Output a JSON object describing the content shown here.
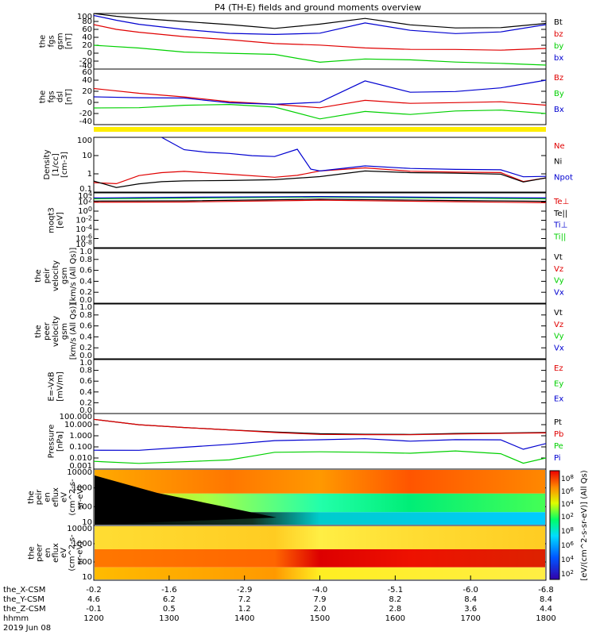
{
  "title": "P4 (TH-E) fields and ground moments overview",
  "colors": {
    "black": "#000000",
    "red": "#e00000",
    "green": "#00d000",
    "blue": "#0000d0",
    "yellow": "#ffee00"
  },
  "footer": {
    "rows": [
      {
        "label": "the_X-CSM",
        "values": [
          "-0.2",
          "-1.6",
          "-2.9",
          "-4.0",
          "-5.1",
          "-6.0",
          "-6.8"
        ]
      },
      {
        "label": "the_Y-CSM",
        "values": [
          "4.6",
          "6.2",
          "7.2",
          "7.9",
          "8.2",
          "8.4",
          "8.4"
        ]
      },
      {
        "label": "the_Z-CSM",
        "values": [
          "-0.1",
          "0.5",
          "1.2",
          "2.0",
          "2.8",
          "3.6",
          "4.4"
        ]
      },
      {
        "label": "hhmm",
        "values": [
          "1200",
          "1300",
          "1400",
          "1500",
          "1600",
          "1700",
          "1800"
        ]
      }
    ],
    "date": "2019 Jun 08"
  },
  "colorbar": {
    "label": "[eV/(cm^2-s-sr-eV)]  (All Qs)",
    "upper_ticks": [
      "10^8",
      "10^6",
      "10^4",
      "10^2"
    ],
    "lower_ticks": [
      "10^8",
      "10^6",
      "10^4",
      "10^2"
    ]
  },
  "chart_data": [
    {
      "type": "line",
      "name": "fgs_gsm",
      "ylabel_lines": [
        "the",
        "fgs",
        "gsm",
        "[nT]"
      ],
      "yticks": [
        "100",
        "80",
        "60",
        "40",
        "20",
        "0",
        "-20",
        "-40"
      ],
      "ylim": [
        -40,
        100
      ],
      "legend": [
        "Bt",
        "bz",
        "by",
        "bx"
      ],
      "series": [
        {
          "name": "Bt",
          "color": "black",
          "x": [
            0,
            0.05,
            0.1,
            0.2,
            0.3,
            0.35,
            0.4,
            0.5,
            0.6,
            0.7,
            0.8,
            0.9,
            1
          ],
          "y": [
            100,
            95,
            90,
            80,
            70,
            65,
            62,
            75,
            90,
            72,
            62,
            62,
            75
          ]
        },
        {
          "name": "bz",
          "color": "red",
          "x": [
            0,
            0.05,
            0.1,
            0.2,
            0.3,
            0.4,
            0.5,
            0.6,
            0.7,
            0.8,
            0.9,
            1
          ],
          "y": [
            72,
            62,
            55,
            42,
            32,
            22,
            20,
            15,
            12,
            10,
            6,
            12
          ]
        },
        {
          "name": "by",
          "color": "green",
          "x": [
            0,
            0.1,
            0.2,
            0.3,
            0.4,
            0.5,
            0.6,
            0.7,
            0.8,
            0.9,
            1
          ],
          "y": [
            20,
            15,
            5,
            0,
            -5,
            -25,
            -15,
            -15,
            -20,
            -25,
            -30
          ]
        },
        {
          "name": "bx",
          "color": "blue",
          "x": [
            0,
            0.05,
            0.1,
            0.2,
            0.3,
            0.4,
            0.5,
            0.6,
            0.7,
            0.8,
            0.9,
            1
          ],
          "y": [
            95,
            85,
            75,
            60,
            48,
            45,
            50,
            78,
            60,
            50,
            52,
            72
          ]
        }
      ]
    },
    {
      "type": "line",
      "name": "fgs_dsl",
      "ylabel_lines": [
        "the",
        "fgs",
        "dsl",
        "[nT]"
      ],
      "yticks": [
        "60",
        "40",
        "20",
        "0",
        "-20",
        "-40"
      ],
      "ylim": [
        -40,
        60
      ],
      "legend": [
        "Bz",
        "By",
        "Bx"
      ],
      "series": [
        {
          "name": "Bz",
          "color": "red",
          "x": [
            0,
            0.1,
            0.2,
            0.3,
            0.4,
            0.5,
            0.6,
            0.7,
            0.8,
            0.9,
            1
          ],
          "y": [
            25,
            18,
            10,
            0,
            -5,
            -10,
            5,
            0,
            0,
            0,
            -5
          ]
        },
        {
          "name": "By",
          "color": "green",
          "x": [
            0,
            0.1,
            0.2,
            0.3,
            0.4,
            0.5,
            0.6,
            0.7,
            0.8,
            0.9,
            1
          ],
          "y": [
            -10,
            -8,
            -5,
            -5,
            -10,
            -30,
            -15,
            -20,
            -15,
            -15,
            -20
          ]
        },
        {
          "name": "Bx",
          "color": "blue",
          "x": [
            0,
            0.1,
            0.2,
            0.3,
            0.4,
            0.5,
            0.6,
            0.7,
            0.8,
            0.9,
            1
          ],
          "y": [
            10,
            10,
            8,
            -2,
            -5,
            0,
            40,
            20,
            20,
            25,
            40
          ]
        }
      ]
    },
    {
      "type": "line",
      "name": "density",
      "ylabel_lines": [
        "Density",
        "[1/cc]",
        "[cm-3]"
      ],
      "yticks": [
        "100",
        "10",
        "1",
        "0.1"
      ],
      "ylim": [
        0.1,
        300
      ],
      "log": true,
      "legend": [
        "Ne",
        "Ni",
        "Npot"
      ],
      "series": [
        {
          "name": "Ne",
          "color": "red",
          "x": [
            0,
            0.05,
            0.1,
            0.15,
            0.2,
            0.3,
            0.4,
            0.45,
            0.5,
            0.6,
            0.7,
            0.8,
            0.9,
            0.95,
            1
          ],
          "y": [
            0.4,
            0.35,
            1,
            1.5,
            2,
            1.5,
            1,
            1.2,
            2,
            3,
            2,
            2,
            2,
            0.5,
            0.8
          ]
        },
        {
          "name": "Ni",
          "color": "black",
          "x": [
            0,
            0.05,
            0.1,
            0.15,
            0.2,
            0.3,
            0.4,
            0.5,
            0.6,
            0.7,
            0.8,
            0.9,
            0.95,
            1
          ],
          "y": [
            0.5,
            0.2,
            0.3,
            0.4,
            0.5,
            0.6,
            0.7,
            1,
            2,
            1.5,
            1.5,
            1.5,
            0.5,
            0.8
          ]
        },
        {
          "name": "Npot",
          "color": "blue",
          "x": [
            0.15,
            0.2,
            0.25,
            0.3,
            0.35,
            0.4,
            0.45,
            0.48,
            0.5,
            0.6,
            0.7,
            0.8,
            0.9,
            0.95,
            1
          ],
          "y": [
            300,
            50,
            30,
            25,
            20,
            20,
            60,
            3,
            2,
            4,
            3,
            3,
            3,
            1,
            1
          ]
        }
      ]
    },
    {
      "type": "line",
      "name": "temperature",
      "ylabel_lines": [
        "moqt3",
        "[eV]"
      ],
      "yticks": [
        "10^4",
        "10^2",
        "10^0",
        "10^-2",
        "10^-4",
        "10^-6",
        "10^-8"
      ],
      "ylim": [
        1e-09,
        100000.0
      ],
      "log": true,
      "legend": [
        "Te⊥",
        "Te||",
        "Ti⊥",
        "Ti||"
      ],
      "series": [
        {
          "name": "Ti||",
          "color": "green",
          "x": [
            0,
            0.2,
            0.5,
            0.8,
            1
          ],
          "y": [
            3000,
            3000,
            5000,
            4000,
            3000
          ]
        },
        {
          "name": "Ti⊥",
          "color": "blue",
          "x": [
            0,
            0.2,
            0.5,
            0.8,
            1
          ],
          "y": [
            5000,
            5000,
            7000,
            6000,
            5000
          ]
        },
        {
          "name": "Te||",
          "color": "black",
          "x": [
            0,
            0.2,
            0.5,
            0.8,
            1
          ],
          "y": [
            800,
            600,
            1500,
            1000,
            700
          ]
        },
        {
          "name": "Te⊥",
          "color": "red",
          "x": [
            0,
            0.2,
            0.5,
            0.8,
            1
          ],
          "y": [
            400,
            300,
            800,
            500,
            300
          ]
        }
      ]
    },
    {
      "type": "line",
      "name": "peir_velocity",
      "ylabel_lines": [
        "the",
        "peir",
        "velocity",
        "gsm",
        "[km/s (All Qs)]"
      ],
      "yticks": [
        "1.0",
        "0.8",
        "0.6",
        "0.4",
        "0.2",
        "0.0"
      ],
      "ylim": [
        0,
        1
      ],
      "legend": [
        "Vt",
        "Vz",
        "Vy",
        "Vx"
      ],
      "series": []
    },
    {
      "type": "line",
      "name": "peer_velocity",
      "ylabel_lines": [
        "the",
        "peer",
        "velocity",
        "gsm",
        "[km/s (All Qs)]"
      ],
      "yticks": [
        "1.0",
        "0.8",
        "0.6",
        "0.4",
        "0.2",
        "0.0"
      ],
      "ylim": [
        0,
        1
      ],
      "legend": [
        "Vt",
        "Vz",
        "Vy",
        "Vx"
      ],
      "series": []
    },
    {
      "type": "line",
      "name": "e_field",
      "ylabel_lines": [
        "E=-VxB",
        "[mV/m]"
      ],
      "yticks": [
        "1.0",
        "0.8",
        "0.6",
        "0.4",
        "0.2",
        "0.0"
      ],
      "ylim": [
        0,
        1
      ],
      "legend": [
        "Ez",
        "Ey",
        "Ex"
      ],
      "series": []
    },
    {
      "type": "line",
      "name": "pressure",
      "ylabel_lines": [
        "Pressure",
        "[nPa]"
      ],
      "yticks": [
        "100.000",
        "10.000",
        "1.000",
        "0.100",
        "0.010",
        "0.001"
      ],
      "ylim": [
        0.001,
        100
      ],
      "log": true,
      "legend": [
        "Pt",
        "Pb",
        "Pe",
        "Pi"
      ],
      "series": [
        {
          "name": "Pt",
          "color": "black",
          "x": [
            0,
            0.1,
            0.2,
            0.3,
            0.4,
            0.5,
            0.6,
            0.7,
            0.8,
            0.9,
            1
          ],
          "y": [
            30,
            12,
            6,
            3,
            1.8,
            1.4,
            1.5,
            1.6,
            1.8,
            1.6,
            2
          ]
        },
        {
          "name": "Pb",
          "color": "red",
          "x": [
            0,
            0.1,
            0.2,
            0.3,
            0.4,
            0.5,
            0.6,
            0.7,
            0.8,
            0.9,
            1
          ],
          "y": [
            30,
            12,
            6,
            3,
            1.6,
            1.2,
            1.4,
            1.5,
            1.6,
            1.5,
            1.8
          ]
        },
        {
          "name": "Pe",
          "color": "green",
          "x": [
            0,
            0.1,
            0.2,
            0.3,
            0.35,
            0.4,
            0.5,
            0.6,
            0.7,
            0.8,
            0.9,
            0.95,
            1
          ],
          "y": [
            0.005,
            0.004,
            0.005,
            0.006,
            0.012,
            0.03,
            0.04,
            0.04,
            0.03,
            0.04,
            0.02,
            0.003,
            0.01
          ]
        },
        {
          "name": "Pi",
          "color": "blue",
          "x": [
            0,
            0.1,
            0.2,
            0.3,
            0.4,
            0.5,
            0.6,
            0.7,
            0.8,
            0.9,
            0.95,
            1
          ],
          "y": [
            0.05,
            0.06,
            0.1,
            0.15,
            0.3,
            0.4,
            0.6,
            0.4,
            0.5,
            0.4,
            0.05,
            0.2
          ]
        }
      ]
    },
    {
      "type": "heatmap",
      "name": "peir_eflux",
      "ylabel_lines": [
        "the",
        "peir",
        "en",
        "eflux",
        "eV",
        "(cm^2-s-",
        "sr-eV)"
      ],
      "yticks": [
        "10000",
        "1000",
        "100",
        "10"
      ]
    },
    {
      "type": "heatmap",
      "name": "peer_eflux",
      "ylabel_lines": [
        "the",
        "peer",
        "en",
        "eflux",
        "eV",
        "(cm^2-s-",
        "sr-eV)"
      ],
      "yticks": [
        "10000",
        "1000",
        "100",
        "10"
      ]
    }
  ]
}
